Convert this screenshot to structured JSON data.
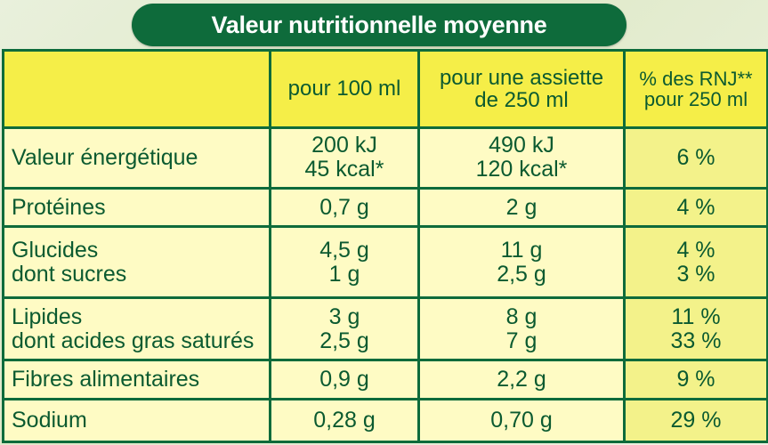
{
  "title": "Valeur nutritionnelle moyenne",
  "columns": {
    "c2": "pour 100 ml",
    "c3": [
      "pour une assiette",
      "de 250 ml"
    ],
    "c4": [
      "% des RNJ**",
      "pour 250 ml"
    ]
  },
  "rows": [
    {
      "label": [
        "Valeur énergétique"
      ],
      "per100": [
        "200 kJ",
        "45 kcal*"
      ],
      "per250": [
        "490 kJ",
        "120 kcal*"
      ],
      "rnj": [
        "6 %"
      ]
    },
    {
      "label": [
        "Protéines"
      ],
      "per100": [
        "0,7 g"
      ],
      "per250": [
        "2 g"
      ],
      "rnj": [
        "4 %"
      ]
    },
    {
      "label": [
        "Glucides",
        "dont sucres"
      ],
      "per100": [
        "4,5 g",
        "1 g"
      ],
      "per250": [
        "11 g",
        "2,5 g"
      ],
      "rnj": [
        "4 %",
        "3 %"
      ]
    },
    {
      "label": [
        "Lipides",
        "dont acides gras saturés"
      ],
      "per100": [
        "3 g",
        "2,5 g"
      ],
      "per250": [
        "8 g",
        "7 g"
      ],
      "rnj": [
        "11 %",
        "33 %"
      ]
    },
    {
      "label": [
        "Fibres alimentaires"
      ],
      "per100": [
        "0,9 g"
      ],
      "per250": [
        "2,2 g"
      ],
      "rnj": [
        "9 %"
      ]
    },
    {
      "label": [
        "Sodium"
      ],
      "per100": [
        "0,28 g"
      ],
      "per250": [
        "0,70 g"
      ],
      "rnj": [
        "29 %"
      ]
    }
  ],
  "colors": {
    "green": "#0e6b3b",
    "header_yellow": "#f5ee48",
    "cell_yellow": "#fefbc4",
    "rnj_yellow": "#f3f28a"
  }
}
